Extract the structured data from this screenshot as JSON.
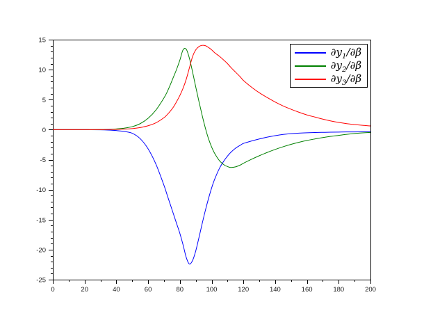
{
  "figure": {
    "background": "#ffffff",
    "frame_color": "#000000",
    "tick_label_color": "#1a1a1a"
  },
  "chart_data": {
    "type": "line",
    "title": "",
    "xlabel": "",
    "ylabel": "",
    "xlim": [
      0,
      200
    ],
    "ylim": [
      -25,
      15
    ],
    "grid": false,
    "legend_position": "top-right",
    "x": [
      0,
      10,
      20,
      30,
      35,
      40,
      45,
      50,
      55,
      60,
      65,
      70,
      72,
      74,
      76,
      78,
      80,
      82,
      84,
      86,
      88,
      90,
      92,
      94,
      96,
      98,
      100,
      102,
      105,
      108,
      110,
      112,
      115,
      118,
      120,
      125,
      130,
      135,
      140,
      145,
      150,
      155,
      160,
      165,
      170,
      175,
      180,
      185,
      190,
      195,
      200
    ],
    "series": [
      {
        "name": "∂y1/∂β",
        "color": "#0000ff",
        "values": [
          0,
          0,
          0,
          -0.03,
          -0.07,
          -0.15,
          -0.3,
          -0.6,
          -1.5,
          -3.2,
          -5.8,
          -9.3,
          -10.9,
          -12.5,
          -14.1,
          -15.7,
          -17.3,
          -19.2,
          -21.3,
          -22.4,
          -21.8,
          -20.2,
          -18.0,
          -15.7,
          -13.5,
          -11.5,
          -9.7,
          -8.2,
          -6.4,
          -5.1,
          -4.4,
          -3.8,
          -3.1,
          -2.6,
          -2.3,
          -1.9,
          -1.55,
          -1.25,
          -1.0,
          -0.8,
          -0.67,
          -0.58,
          -0.52,
          -0.48,
          -0.45,
          -0.42,
          -0.4,
          -0.38,
          -0.37,
          -0.36,
          -0.35
        ]
      },
      {
        "name": "∂y2/∂β",
        "color": "#008000",
        "values": [
          0,
          0,
          0,
          0.02,
          0.05,
          0.12,
          0.25,
          0.5,
          1.0,
          1.9,
          3.3,
          5.3,
          6.3,
          7.5,
          8.8,
          10.1,
          11.6,
          13.3,
          13.4,
          11.9,
          9.6,
          7.1,
          4.7,
          2.4,
          0.3,
          -1.5,
          -2.9,
          -4.0,
          -5.2,
          -5.9,
          -6.15,
          -6.3,
          -6.2,
          -5.9,
          -5.6,
          -4.95,
          -4.35,
          -3.8,
          -3.3,
          -2.85,
          -2.45,
          -2.1,
          -1.8,
          -1.55,
          -1.32,
          -1.12,
          -0.95,
          -0.78,
          -0.64,
          -0.54,
          -0.46
        ]
      },
      {
        "name": "∂y3/∂β",
        "color": "#ff0000",
        "values": [
          0,
          0,
          0,
          0,
          0.02,
          0.05,
          0.1,
          0.18,
          0.35,
          0.65,
          1.15,
          2.0,
          2.5,
          3.1,
          3.8,
          4.7,
          5.7,
          6.9,
          8.4,
          10.3,
          12.2,
          13.3,
          13.85,
          14.05,
          14.0,
          13.7,
          13.3,
          12.8,
          12.2,
          11.5,
          11.0,
          10.4,
          9.6,
          8.8,
          8.2,
          7.1,
          6.15,
          5.35,
          4.6,
          3.95,
          3.4,
          2.9,
          2.45,
          2.1,
          1.75,
          1.45,
          1.2,
          1.0,
          0.85,
          0.72,
          0.62
        ]
      }
    ]
  },
  "axes": {
    "x": {
      "major_ticks": [
        0,
        20,
        40,
        60,
        80,
        100,
        120,
        140,
        160,
        180,
        200
      ],
      "major_labels": [
        "0",
        "20",
        "40",
        "60",
        "80",
        "100",
        "120",
        "140",
        "160",
        "180",
        "200"
      ],
      "minor_step": 10
    },
    "y": {
      "major_ticks": [
        -25,
        -20,
        -15,
        -10,
        -5,
        0,
        5,
        10,
        15
      ],
      "major_labels": [
        "-25",
        "-20",
        "-15",
        "-10",
        "-5",
        "0",
        "5",
        "10",
        "15"
      ],
      "minor_step": 1
    }
  },
  "legend": {
    "entries": [
      {
        "pre": "∂y",
        "sub": "1",
        "post": "/∂β",
        "color": "#0000ff"
      },
      {
        "pre": "∂y",
        "sub": "2",
        "post": "/∂β",
        "color": "#008000"
      },
      {
        "pre": "∂y",
        "sub": "3",
        "post": "/∂β",
        "color": "#ff0000"
      }
    ]
  }
}
